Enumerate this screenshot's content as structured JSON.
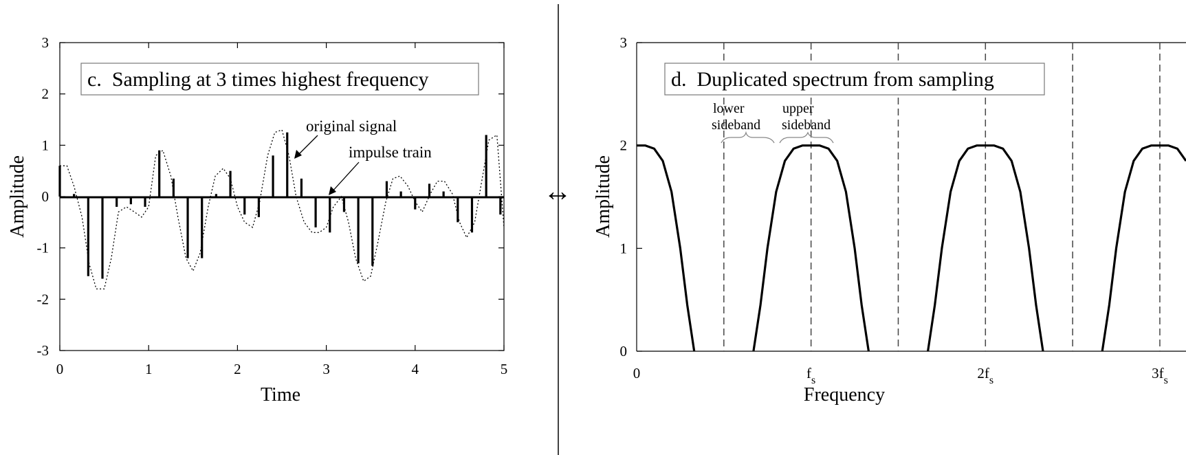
{
  "chart_data": [
    {
      "type": "line",
      "title": "c.  Sampling at 3 times highest frequency",
      "xlabel": "Time",
      "ylabel": "Amplitude",
      "xlim": [
        0,
        5
      ],
      "ylim": [
        -3,
        3
      ],
      "x_ticks": [
        "0",
        "1",
        "2",
        "3",
        "4",
        "5"
      ],
      "y_ticks": [
        "-3",
        "-2",
        "-1",
        "0",
        "1",
        "2",
        "3"
      ],
      "series": [
        {
          "name": "original signal",
          "style": "dotted",
          "x": [
            0,
            0.08,
            0.16,
            0.25,
            0.33,
            0.41,
            0.5,
            0.58,
            0.66,
            0.75,
            0.84,
            0.92,
            1.0,
            1.08,
            1.16,
            1.25,
            1.33,
            1.42,
            1.5,
            1.58,
            1.67,
            1.75,
            1.84,
            1.92,
            2.0,
            2.08,
            2.17,
            2.25,
            2.34,
            2.42,
            2.5,
            2.58,
            2.66,
            2.75,
            2.84,
            2.92,
            3.0,
            3.08,
            3.17,
            3.25,
            3.33,
            3.42,
            3.5,
            3.58,
            3.67,
            3.75,
            3.83,
            3.92,
            4.0,
            4.08,
            4.17,
            4.25,
            4.33,
            4.42,
            4.5,
            4.58,
            4.67,
            4.75,
            4.83,
            4.92,
            5.0
          ],
          "y": [
            0.6,
            0.6,
            0.2,
            -0.4,
            -1.3,
            -1.8,
            -1.8,
            -1.2,
            -0.3,
            -0.2,
            -0.3,
            -0.4,
            -0.2,
            0.8,
            0.9,
            0.4,
            -0.4,
            -1.2,
            -1.45,
            -1.1,
            -0.2,
            0.4,
            0.55,
            0.35,
            -0.2,
            -0.5,
            -0.6,
            -0.1,
            0.8,
            1.25,
            1.3,
            0.8,
            0.0,
            -0.5,
            -0.7,
            -0.7,
            -0.6,
            -0.2,
            0.0,
            -0.5,
            -1.2,
            -1.65,
            -1.55,
            -0.9,
            -0.1,
            0.35,
            0.4,
            0.2,
            -0.1,
            -0.3,
            0.05,
            0.3,
            0.3,
            0.05,
            -0.5,
            -0.8,
            -0.5,
            0.3,
            1.1,
            1.2,
            -0.6
          ]
        },
        {
          "name": "impulse train",
          "style": "stems",
          "x": [
            0.0,
            0.16,
            0.32,
            0.48,
            0.64,
            0.8,
            0.96,
            1.12,
            1.28,
            1.44,
            1.6,
            1.76,
            1.92,
            2.08,
            2.24,
            2.4,
            2.56,
            2.72,
            2.88,
            3.04,
            3.2,
            3.36,
            3.52,
            3.68,
            3.84,
            4.0,
            4.16,
            4.32,
            4.48,
            4.64,
            4.8,
            4.96
          ],
          "y": [
            0.6,
            0.05,
            -1.55,
            -1.6,
            -0.2,
            -0.15,
            -0.2,
            0.9,
            0.35,
            -1.2,
            -1.2,
            0.05,
            0.5,
            -0.35,
            -0.4,
            0.8,
            1.25,
            0.35,
            -0.6,
            -0.7,
            -0.3,
            -1.3,
            -1.35,
            0.3,
            0.1,
            -0.25,
            0.25,
            0.1,
            -0.5,
            -0.7,
            1.2,
            -0.35
          ]
        }
      ],
      "annotations": [
        "original signal",
        "impulse train"
      ]
    },
    {
      "type": "line",
      "title": "d.  Duplicated spectrum from sampling",
      "xlabel": "Frequency",
      "ylabel": "Amplitude",
      "xlim": [
        0,
        3.15
      ],
      "ylim": [
        0,
        3
      ],
      "x_ticks": [
        {
          "value": 0,
          "label": "0",
          "sub": ""
        },
        {
          "value": 1,
          "label": "f",
          "sub": "s"
        },
        {
          "value": 2,
          "label": "2f",
          "sub": "s"
        },
        {
          "value": 3,
          "label": "3f",
          "sub": "s"
        }
      ],
      "y_ticks": [
        "0",
        "1",
        "2",
        "3"
      ],
      "vlines": [
        0.5,
        1.0,
        1.5,
        2.0,
        2.5,
        3.0
      ],
      "lobe": {
        "halfwidth_at_zero": 0.33,
        "peak": 2.0,
        "profile": [
          [
            0,
            2.0
          ],
          [
            0.05,
            2.0
          ],
          [
            0.1,
            1.97
          ],
          [
            0.15,
            1.85
          ],
          [
            0.2,
            1.55
          ],
          [
            0.25,
            1.0
          ],
          [
            0.29,
            0.45
          ],
          [
            0.33,
            0.0
          ]
        ]
      },
      "lobe_centers": [
        0,
        1,
        2,
        3
      ],
      "annotations": {
        "lower": [
          "lower",
          "sideband"
        ],
        "upper": [
          "upper",
          "sideband"
        ]
      }
    }
  ],
  "arrow_symbol": "↔"
}
